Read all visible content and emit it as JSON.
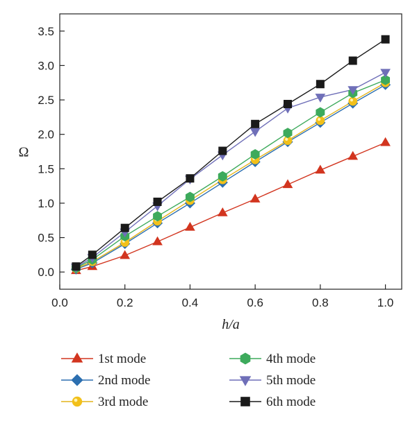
{
  "chart_data": {
    "type": "line",
    "xlabel": "h/a",
    "ylabel": "Ω",
    "xlim": [
      0.0,
      1.05
    ],
    "ylim": [
      -0.25,
      3.75
    ],
    "xticks": [
      0.0,
      0.2,
      0.4,
      0.6,
      0.8,
      1.0
    ],
    "xtick_labels": [
      "0.0",
      "0.2",
      "0.4",
      "0.6",
      "0.8",
      "1.0"
    ],
    "yticks": [
      0.0,
      0.5,
      1.0,
      1.5,
      2.0,
      2.5,
      3.0,
      3.5
    ],
    "ytick_labels": [
      "0.0",
      "0.5",
      "1.0",
      "1.5",
      "2.0",
      "2.5",
      "3.0",
      "3.5"
    ],
    "grid": false,
    "legend_position": "bottom",
    "x": [
      0.05,
      0.1,
      0.2,
      0.3,
      0.4,
      0.5,
      0.6,
      0.7,
      0.8,
      0.9,
      1.0
    ],
    "series": [
      {
        "name": "1st mode",
        "marker": "triangle-up",
        "color": "#d2351f",
        "line_color": "#d2351f",
        "values": [
          0.02,
          0.08,
          0.24,
          0.44,
          0.65,
          0.86,
          1.06,
          1.27,
          1.48,
          1.68,
          1.88
        ]
      },
      {
        "name": "2nd mode",
        "marker": "diamond",
        "color": "#2c6fb0",
        "line_color": "#2c6fb0",
        "values": [
          0.04,
          0.13,
          0.41,
          0.71,
          1.0,
          1.3,
          1.6,
          1.89,
          2.17,
          2.45,
          2.72
        ]
      },
      {
        "name": "3rd mode",
        "marker": "circle",
        "color": "#f2c01a",
        "line_color": "#e3b31a",
        "values": [
          0.05,
          0.15,
          0.43,
          0.74,
          1.04,
          1.34,
          1.63,
          1.91,
          2.2,
          2.48,
          2.75
        ]
      },
      {
        "name": "4th mode",
        "marker": "hexagon",
        "color": "#3daa5c",
        "line_color": "#3daa5c",
        "values": [
          0.06,
          0.18,
          0.52,
          0.81,
          1.09,
          1.39,
          1.71,
          2.02,
          2.32,
          2.6,
          2.79
        ]
      },
      {
        "name": "5th mode",
        "marker": "triangle-down",
        "color": "#6f6fb8",
        "line_color": "#6f6fb8",
        "values": [
          0.07,
          0.21,
          0.58,
          0.96,
          1.35,
          1.7,
          2.04,
          2.38,
          2.54,
          2.65,
          2.9
        ]
      },
      {
        "name": "6th mode",
        "marker": "square",
        "color": "#1a1a1a",
        "line_color": "#1a1a1a",
        "values": [
          0.08,
          0.25,
          0.64,
          1.02,
          1.36,
          1.76,
          2.15,
          2.44,
          2.73,
          3.07,
          3.38
        ]
      }
    ]
  }
}
